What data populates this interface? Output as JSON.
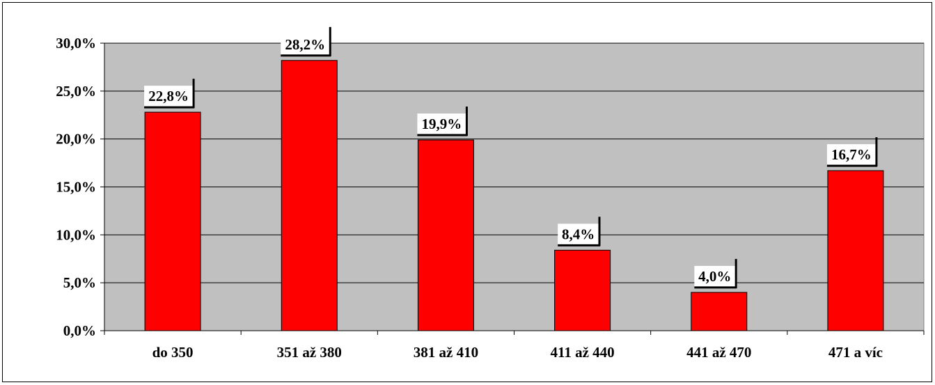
{
  "chart_data": {
    "type": "bar",
    "categories": [
      "do 350",
      "351 až 380",
      "381 až 410",
      "411 až 440",
      "441 až 470",
      "471 a víc"
    ],
    "values": [
      22.8,
      28.2,
      19.9,
      8.4,
      4.0,
      16.7
    ],
    "data_labels": [
      "22,8%",
      "28,2%",
      "19,9%",
      "8,4%",
      "4,0%",
      "16,7%"
    ],
    "y_ticks": [
      0,
      5,
      10,
      15,
      20,
      25,
      30
    ],
    "y_tick_labels": [
      "0,0%",
      "5,0%",
      "10,0%",
      "15,0%",
      "20,0%",
      "25,0%",
      "30,0%"
    ],
    "ylim": [
      0,
      30
    ],
    "grid": true,
    "legend": "none",
    "colors": {
      "bar_fill": "#ff0000",
      "bar_stroke": "#000000",
      "plot_background": "#c0c0c0",
      "gridline": "#000000",
      "label_background": "#ffffff"
    }
  }
}
